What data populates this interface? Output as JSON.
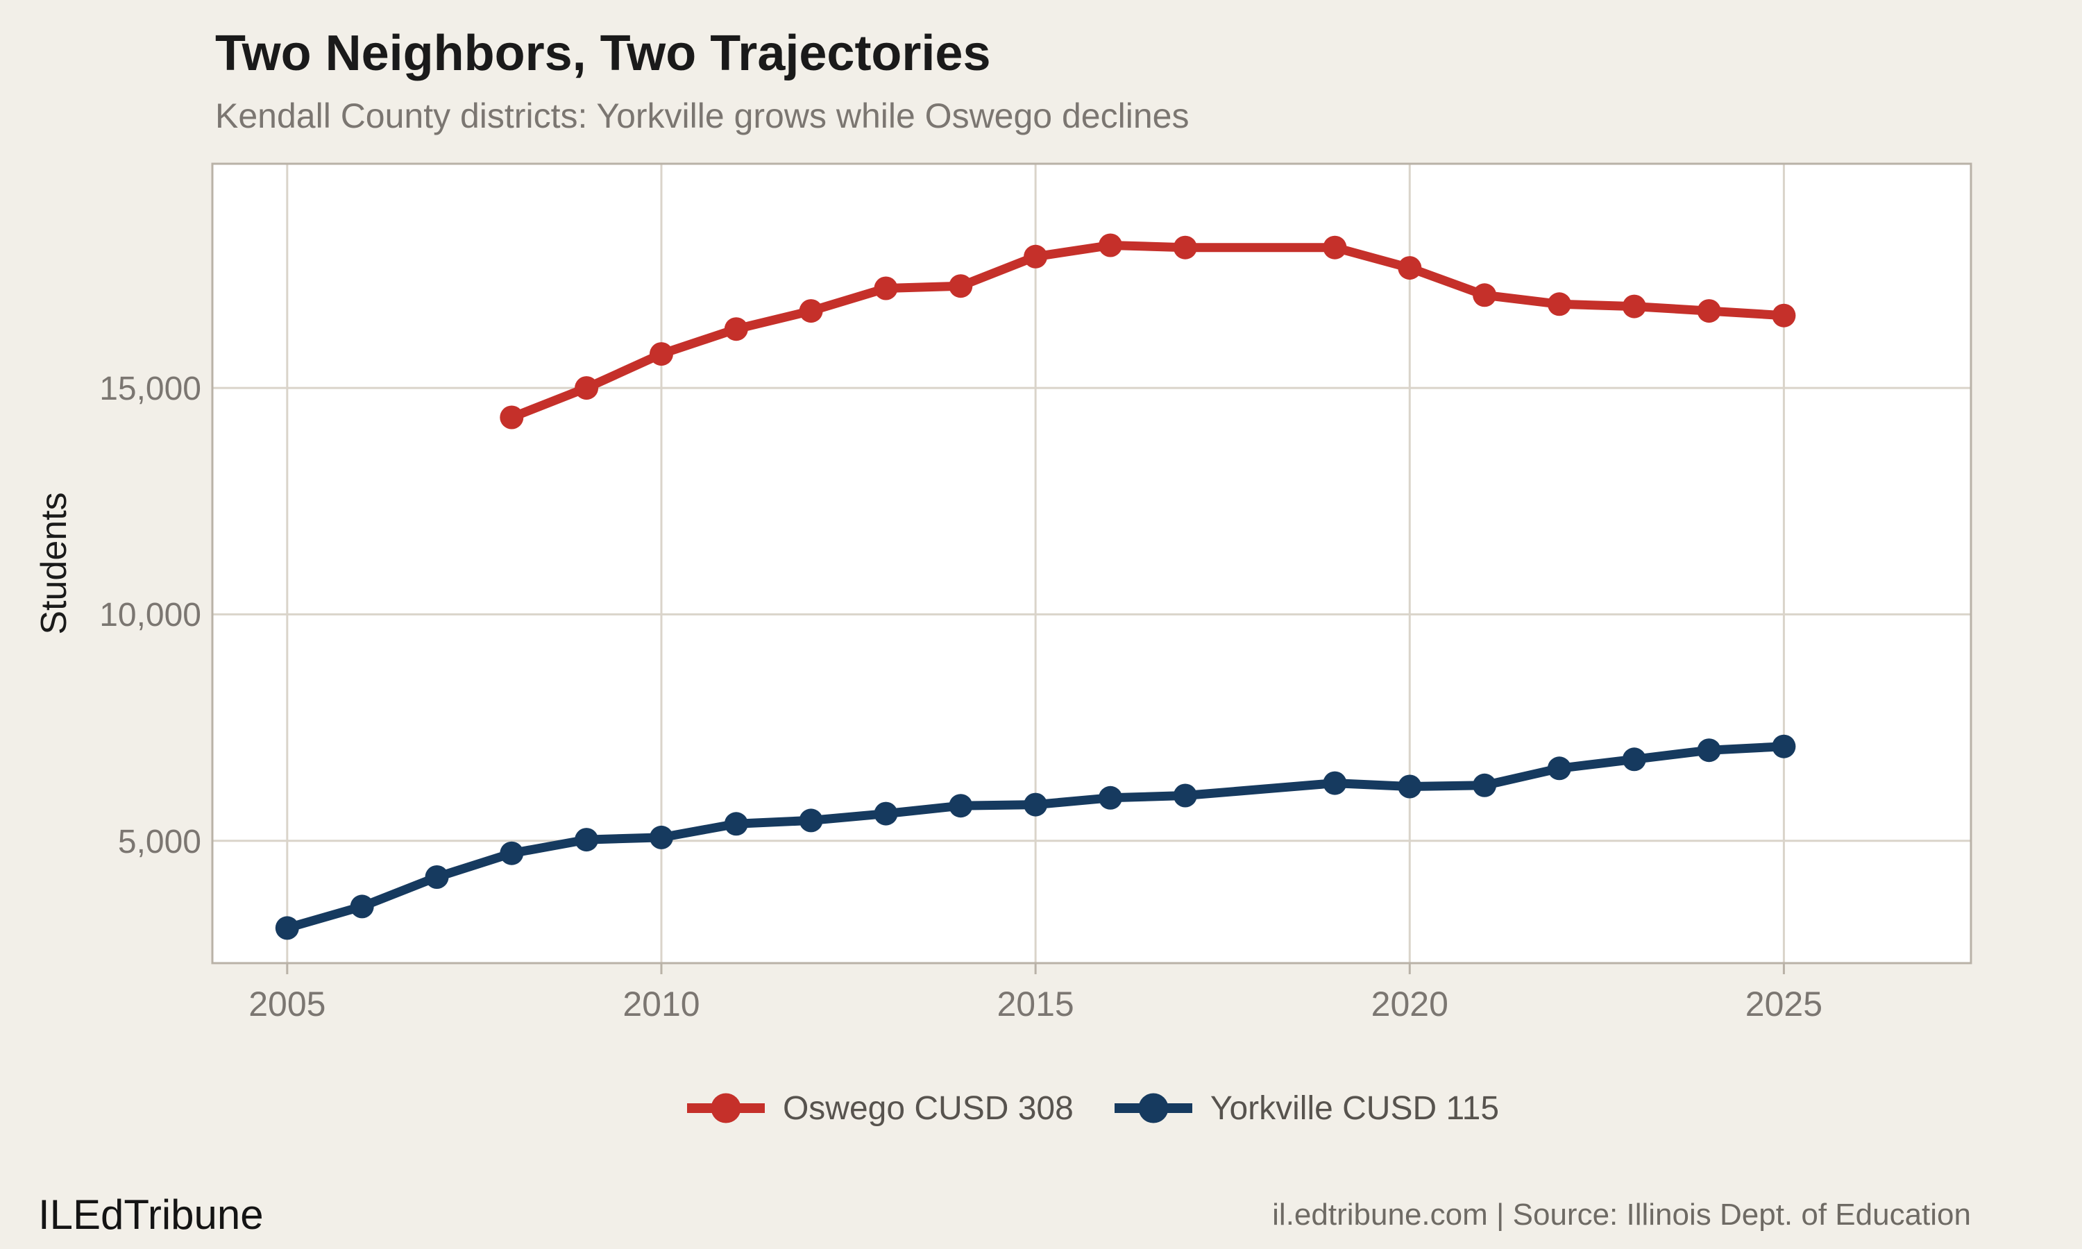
{
  "header": {
    "title": "Two Neighbors, Two Trajectories",
    "subtitle": "Kendall County districts: Yorkville grows while Oswego declines"
  },
  "footer": {
    "brand": "ILEdTribune",
    "attribution": "il.edtribune.com | Source: Illinois Dept. of Education"
  },
  "colors": {
    "background": "#F2EFE8",
    "panel": "#FFFFFF",
    "gridline": "#DAD4CA",
    "axis_border": "#B9B2A7",
    "tick_text": "#7B7671",
    "title_text": "#1A1A1A",
    "legend_text": "#57534E",
    "oswego_red": "#C5302A",
    "yorkville_navy": "#163A5F"
  },
  "chart_data": {
    "type": "line",
    "title": "Two Neighbors, Two Trajectories",
    "subtitle": "Kendall County districts: Yorkville grows while Oswego declines",
    "xlabel": "",
    "ylabel": "Students",
    "grid": true,
    "legend_position": "bottom",
    "xlim": [
      2004.0,
      2027.5
    ],
    "ylim": [
      2300,
      19950
    ],
    "x_ticks": [
      "2005",
      "2010",
      "2015",
      "2020",
      "2025"
    ],
    "y_ticks": [
      5000,
      10000,
      15000
    ],
    "y_tick_labels": [
      "5,000",
      "10,000",
      "15,000"
    ],
    "missing_year_note": "no data point plotted for 2018 in either series",
    "series": [
      {
        "name": "Oswego CUSD 308",
        "color": "#C5302A",
        "points": [
          [
            2008,
            14350
          ],
          [
            2009,
            15000
          ],
          [
            2010,
            15750
          ],
          [
            2011,
            16300
          ],
          [
            2012,
            16700
          ],
          [
            2013,
            17200
          ],
          [
            2014,
            17250
          ],
          [
            2015,
            17900
          ],
          [
            2016,
            18150
          ],
          [
            2017,
            18100
          ],
          [
            2019,
            18100
          ],
          [
            2020,
            17650
          ],
          [
            2021,
            17050
          ],
          [
            2022,
            16850
          ],
          [
            2023,
            16800
          ],
          [
            2024,
            16700
          ],
          [
            2025,
            16600
          ]
        ]
      },
      {
        "name": "Yorkville CUSD 115",
        "color": "#163A5F",
        "points": [
          [
            2005,
            3075
          ],
          [
            2006,
            3550
          ],
          [
            2007,
            4200
          ],
          [
            2008,
            4725
          ],
          [
            2009,
            5025
          ],
          [
            2010,
            5075
          ],
          [
            2011,
            5375
          ],
          [
            2012,
            5450
          ],
          [
            2013,
            5600
          ],
          [
            2014,
            5775
          ],
          [
            2015,
            5800
          ],
          [
            2016,
            5950
          ],
          [
            2017,
            6000
          ],
          [
            2019,
            6275
          ],
          [
            2020,
            6200
          ],
          [
            2021,
            6225
          ],
          [
            2022,
            6600
          ],
          [
            2023,
            6800
          ],
          [
            2024,
            7000
          ],
          [
            2025,
            7085
          ]
        ]
      }
    ]
  }
}
